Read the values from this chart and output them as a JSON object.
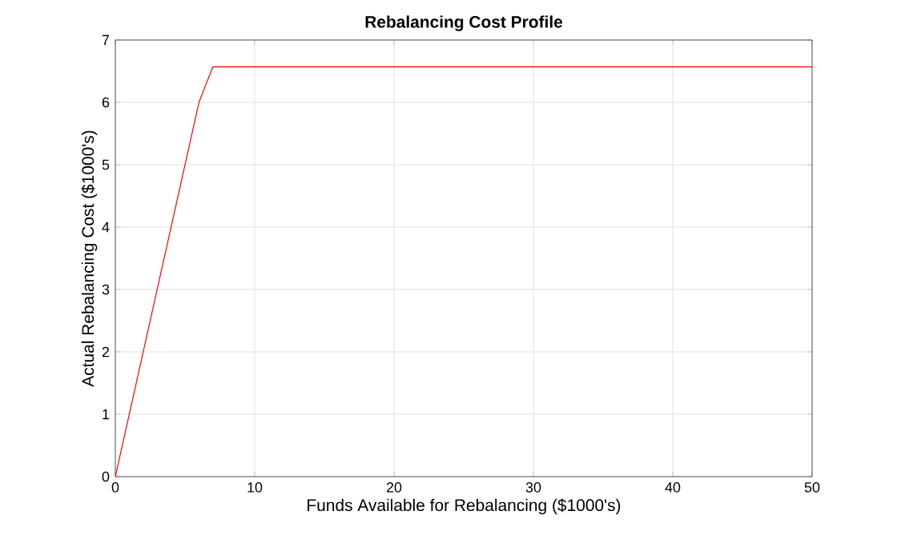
{
  "chart_data": {
    "type": "line",
    "title": "Rebalancing Cost Profile",
    "xlabel": "Funds Available for Rebalancing ($1000's)",
    "ylabel": "Actual Rebalancing Cost ($1000's)",
    "x": [
      0,
      6,
      7,
      50
    ],
    "series": [
      {
        "color": "#ff0000",
        "values": [
          0,
          6,
          6.57,
          6.57
        ]
      }
    ],
    "xlim": [
      0,
      50
    ],
    "ylim": [
      0,
      7
    ],
    "xticks": [
      0,
      10,
      20,
      30,
      40,
      50
    ],
    "yticks": [
      0,
      1,
      2,
      3,
      4,
      5,
      6,
      7
    ],
    "grid": true,
    "marker": "none",
    "line_style": "solid"
  }
}
